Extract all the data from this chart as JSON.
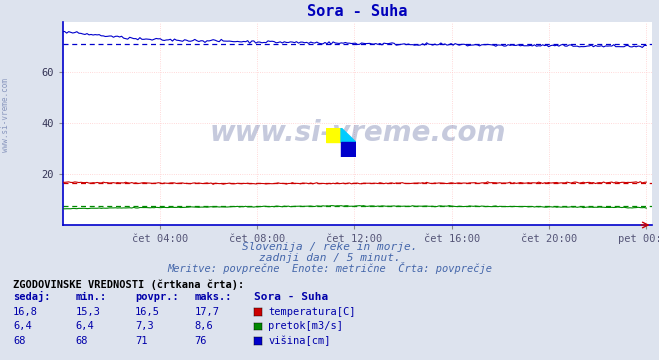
{
  "title": "Sora - Suha",
  "bg_color": "#dde3ee",
  "plot_bg_color": "#ffffff",
  "grid_color": "#ffaaaa",
  "dot_grid_color": "#ddddff",
  "xtick_labels": [
    "čet 04:00",
    "čet 08:00",
    "čet 12:00",
    "čet 16:00",
    "čet 20:00",
    "pet 00:00"
  ],
  "ytick_labels": [
    "20",
    "40",
    "60"
  ],
  "ytick_values": [
    20,
    40,
    60
  ],
  "ylim": [
    0,
    80
  ],
  "xlim": [
    0,
    288
  ],
  "subtitle1": "Slovenija / reke in morje.",
  "subtitle2": "zadnji dan / 5 minut.",
  "subtitle3": "Meritve: povprečne  Enote: metrične  Črta: povprečje",
  "table_title": "ZGODOVINSKE VREDNOSTI (črtkana črta):",
  "table_headers": [
    "sedaj:",
    "min.:",
    "povpr.:",
    "maks.:",
    "Sora - Suha"
  ],
  "table_rows": [
    [
      "16,8",
      "15,3",
      "16,5",
      "17,7",
      "temperatura[C]",
      "#cc0000"
    ],
    [
      "6,4",
      "6,4",
      "7,3",
      "8,6",
      "pretok[m3/s]",
      "#008800"
    ],
    [
      "68",
      "68",
      "71",
      "76",
      "višina[cm]",
      "#0000cc"
    ]
  ],
  "temp_color": "#cc0000",
  "flow_color": "#008800",
  "height_color": "#0000cc",
  "avg_temp": 16.5,
  "avg_flow": 7.3,
  "avg_height": 71.0,
  "watermark": "www.si-vreme.com",
  "left_watermark": "www.si-vreme.com",
  "title_color": "#0000bb",
  "subtitle_color": "#4466aa",
  "table_color": "#0000aa",
  "table_title_color": "#000000",
  "xtick_color": "#555577",
  "ytick_color": "#333355"
}
